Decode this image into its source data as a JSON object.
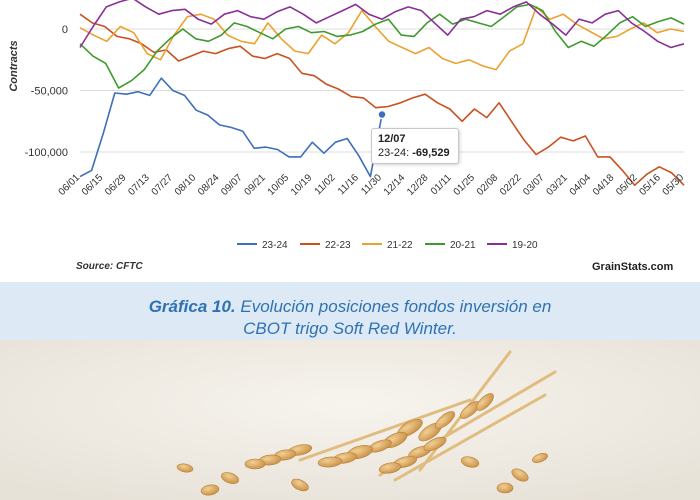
{
  "caption": {
    "label": "Gráfica 10.",
    "line1": "Evolución posiciones fondos inversión en",
    "line2": "CBOT trigo Soft Red Winter."
  },
  "footer": {
    "source": "Source: CFTC",
    "brand": "GrainStats.com"
  },
  "tooltip": {
    "date": "12/07",
    "series": "23-24:",
    "value": "-69,529"
  },
  "colors": {
    "23-24": "#3d6fba",
    "22-23": "#c95121",
    "21-22": "#eba230",
    "20-21": "#3f9a2d",
    "19-20": "#8a2f97",
    "grid": "#dcdcdc"
  },
  "chart_data": {
    "type": "line",
    "title": "",
    "ylabel": "Contracts",
    "xlabel": "",
    "ylim": [
      -130000,
      25000
    ],
    "yticks": [
      0,
      -50000,
      -100000
    ],
    "ytick_labels": [
      "0",
      "-50,000",
      "-100,000"
    ],
    "x_tick_labels": [
      "06/01",
      "06/15",
      "06/29",
      "07/13",
      "07/27",
      "08/10",
      "08/24",
      "09/07",
      "09/21",
      "10/05",
      "10/19",
      "11/02",
      "11/16",
      "11/30",
      "12/14",
      "12/28",
      "01/11",
      "01/25",
      "02/08",
      "02/22",
      "03/07",
      "03/21",
      "04/04",
      "04/18",
      "05/02",
      "05/16",
      "05/30"
    ],
    "x_range": [
      0,
      52
    ],
    "legend_position": "bottom",
    "grid": true,
    "series": [
      {
        "name": "23-24",
        "values": [
          -120000,
          -115000,
          -85000,
          -52000,
          -53000,
          -51000,
          -54000,
          -40000,
          -50000,
          -54000,
          -66000,
          -70000,
          -78000,
          -80000,
          -83000,
          -97000,
          -96000,
          -98000,
          -104000,
          -104000,
          -92000,
          -101000,
          -92000,
          -89000,
          -103000,
          -120000,
          -69529
        ]
      },
      {
        "name": "22-23",
        "values": [
          12000,
          5000,
          2000,
          -6000,
          -8000,
          -12000,
          -19000,
          -17000,
          -26000,
          -22000,
          -18000,
          -20000,
          -16000,
          -14000,
          -22000,
          -24000,
          -20000,
          -24000,
          -36000,
          -38000,
          -45000,
          -49000,
          -55000,
          -56000,
          -64000,
          -63000,
          -60000,
          -56000,
          -53000,
          -60000,
          -65000,
          -75000,
          -65000,
          -72000,
          -60000,
          -75000,
          -90000,
          -102000,
          -96000,
          -88000,
          -91000,
          -87000,
          -104000,
          -104000,
          -115000,
          -127000,
          -118000,
          -112000,
          -117000,
          -127000
        ]
      },
      {
        "name": "21-22",
        "values": [
          1000,
          -5000,
          -10000,
          2000,
          -3000,
          -20000,
          -25000,
          -5000,
          10000,
          12000,
          8000,
          -5000,
          -10000,
          -12000,
          5000,
          -8000,
          -18000,
          -20000,
          -5000,
          -12000,
          -3000,
          15000,
          2000,
          -10000,
          -15000,
          -20000,
          -15000,
          -24000,
          -28000,
          -25000,
          -30000,
          -33000,
          -18000,
          -12000,
          18000,
          8000,
          12000,
          4000,
          -2000,
          -8000,
          -6000,
          0,
          5000,
          -3000,
          0,
          -2000
        ]
      },
      {
        "name": "20-21",
        "values": [
          -12000,
          -22000,
          -28000,
          -48000,
          -42000,
          -33000,
          -18000,
          -8000,
          0,
          -8000,
          -10000,
          -5000,
          5000,
          2000,
          -3000,
          -8000,
          0,
          2000,
          -3000,
          -2000,
          -6000,
          -5000,
          -2000,
          4000,
          8000,
          -5000,
          -6000,
          5000,
          12000,
          4000,
          8000,
          5000,
          2000,
          10000,
          18000,
          20000,
          15000,
          -2000,
          -15000,
          -10000,
          -14000,
          -5000,
          5000,
          10000,
          2000,
          6000,
          9000,
          4000
        ]
      },
      {
        "name": "19-20",
        "values": [
          -15000,
          2000,
          18000,
          22000,
          25000,
          18000,
          12000,
          15000,
          16000,
          8000,
          4000,
          12000,
          15000,
          10000,
          8000,
          14000,
          18000,
          12000,
          5000,
          10000,
          15000,
          20000,
          12000,
          8000,
          14000,
          18000,
          15000,
          5000,
          -5000,
          8000,
          10000,
          15000,
          12000,
          18000,
          22000,
          12000,
          4000,
          -5000,
          8000,
          5000,
          12000,
          15000,
          5000,
          -2000,
          -10000,
          -15000,
          -12000
        ]
      }
    ]
  }
}
